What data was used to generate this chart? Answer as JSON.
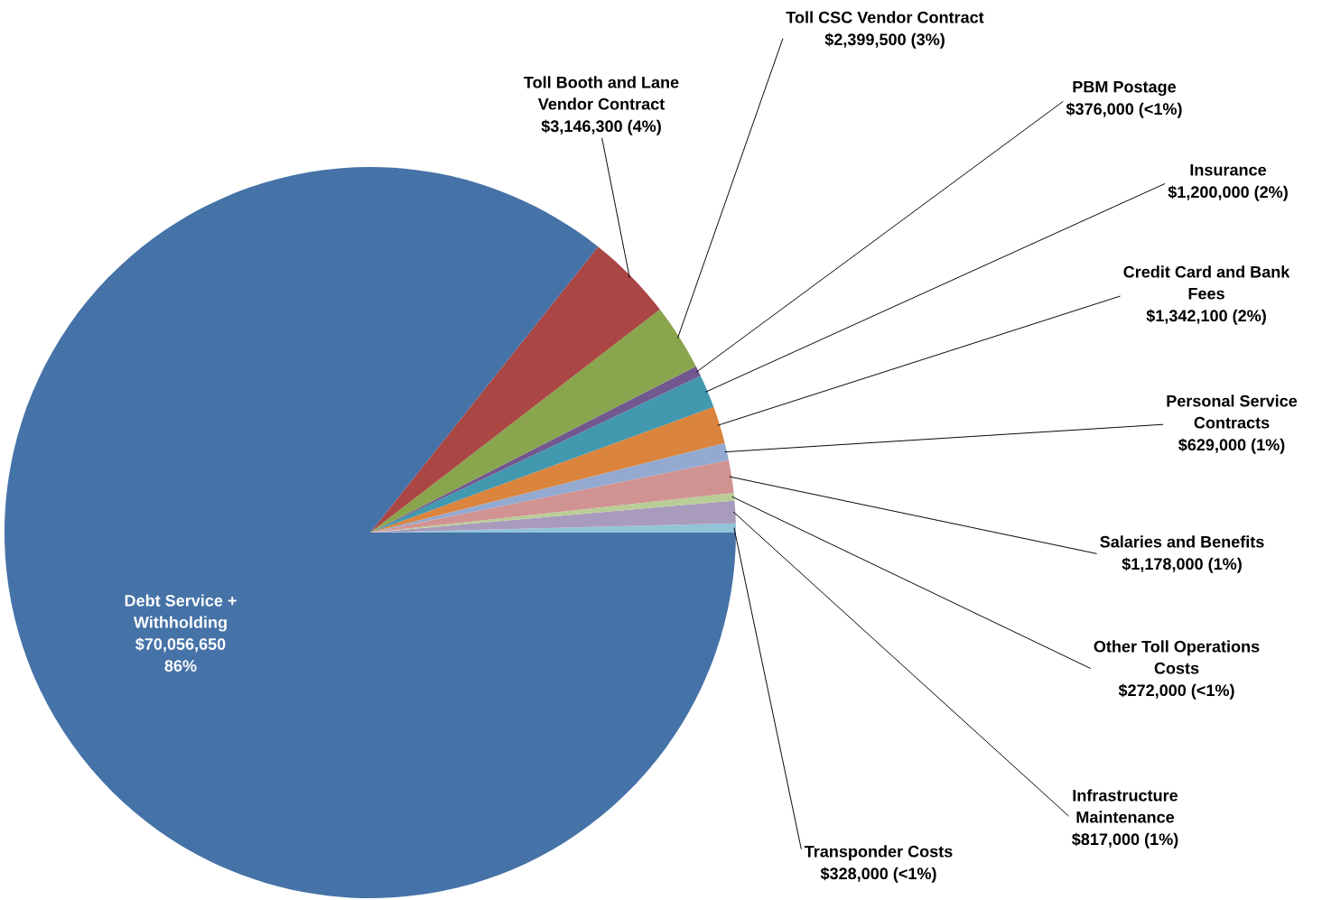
{
  "chart_data": {
    "type": "pie",
    "categories": [
      "Transponder Costs",
      "Infrastructure\nMaintenance",
      "Other Toll Operations\nCosts",
      "Salaries and Benefits",
      "Personal Service\nContracts",
      "Credit Card and Bank\nFees",
      "Insurance",
      "PBM Postage",
      "Toll CSC Vendor Contract",
      "Toll Booth and Lane\nVendor Contract",
      "Debt Service +\nWithholding"
    ],
    "values": [
      328000,
      817000,
      272000,
      1178000,
      629000,
      1342100,
      1200000,
      376000,
      2399500,
      3146300,
      70056650
    ],
    "value_labels": [
      "$328,000 (<1%)",
      "$817,000 (1%)",
      "$272,000 (<1%)",
      "$1,178,000 (1%)",
      "$629,000 (1%)",
      "$1,342,100 (2%)",
      "$1,200,000 (2%)",
      "$376,000 (<1%)",
      "$2,399,500 (3%)",
      "$3,146,300 (4%)",
      "$70,056,650\n86%"
    ],
    "colors": [
      "#92c4d8",
      "#a99bbd",
      "#b9cd96",
      "#d19392",
      "#93a9cf",
      "#db843d",
      "#4198af",
      "#71588f",
      "#89a54e",
      "#aa4643",
      "#4572a7"
    ]
  }
}
